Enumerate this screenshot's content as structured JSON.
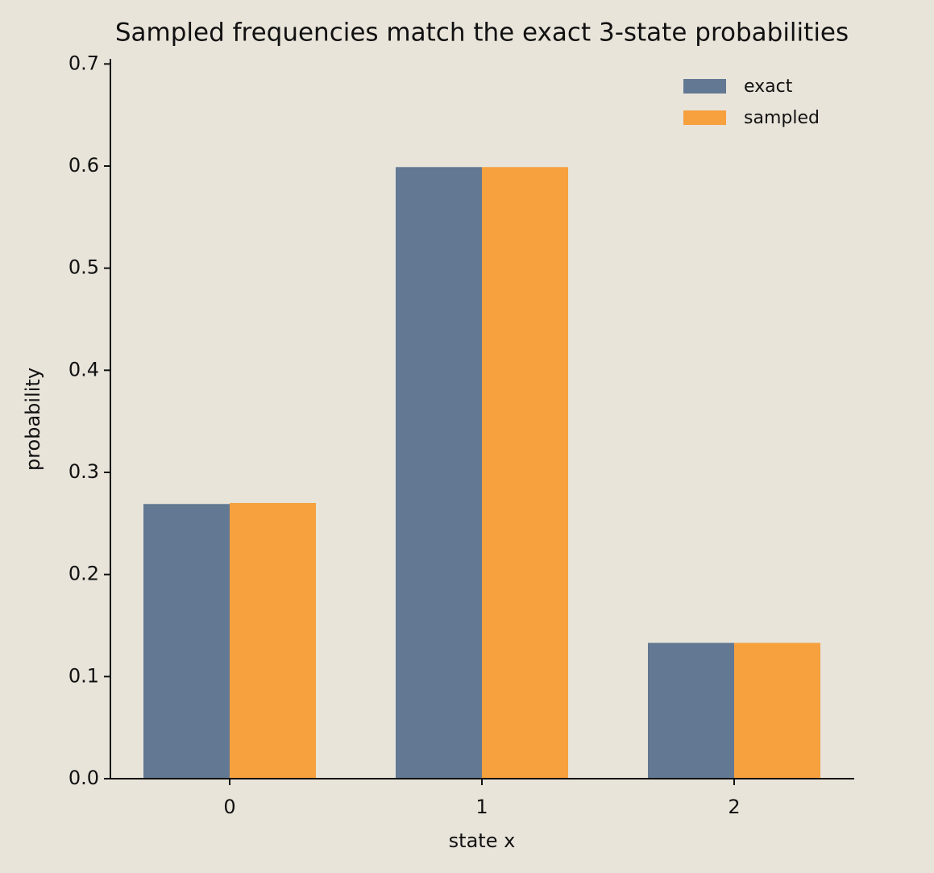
{
  "chart_data": {
    "type": "bar",
    "title": "Sampled frequencies match the exact 3-state probabilities",
    "x_label": "state x",
    "y_label": "probability",
    "categories": [
      "0",
      "1",
      "2"
    ],
    "series": [
      {
        "name": "exact",
        "color": "#627893",
        "values": [
          0.269,
          0.599,
          0.133
        ]
      },
      {
        "name": "sampled",
        "color": "#f6a03e",
        "values": [
          0.27,
          0.599,
          0.133
        ]
      }
    ],
    "ylim": [
      0,
      0.705
    ],
    "yticks": [
      {
        "value": 0,
        "label": "0.0"
      },
      0.1,
      0.2,
      0.3,
      0.4,
      0.5,
      0.6,
      0.7
    ],
    "legend": "upper right",
    "grid": false
  }
}
